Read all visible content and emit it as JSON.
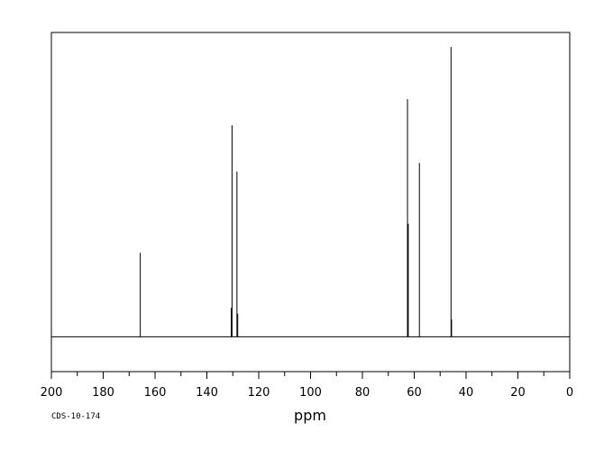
{
  "chart_data": {
    "type": "line",
    "xlabel": "ppm",
    "code": "CDS-10-174",
    "xlim": [
      200,
      0
    ],
    "ylim": [
      -0.12,
      1.05
    ],
    "x_ticks_major": [
      200,
      180,
      160,
      140,
      120,
      100,
      80,
      60,
      40,
      20,
      0
    ],
    "x_tick_labels": [
      "200",
      "180",
      "160",
      "140",
      "120",
      "100",
      "80",
      "60",
      "40",
      "20",
      "0"
    ],
    "minor_tick_step": 10,
    "baseline": 0,
    "peaks": [
      {
        "ppm": 165.7,
        "intensity": 0.29
      },
      {
        "ppm": 130.6,
        "intensity": 0.1
      },
      {
        "ppm": 130.3,
        "intensity": 0.73
      },
      {
        "ppm": 128.4,
        "intensity": 0.57
      },
      {
        "ppm": 128.1,
        "intensity": 0.08
      },
      {
        "ppm": 62.6,
        "intensity": 0.82
      },
      {
        "ppm": 62.3,
        "intensity": 0.39
      },
      {
        "ppm": 58.0,
        "intensity": 0.6
      },
      {
        "ppm": 45.8,
        "intensity": 1.0
      },
      {
        "ppm": 45.6,
        "intensity": 0.06
      }
    ],
    "grid": false,
    "legend": "none"
  }
}
